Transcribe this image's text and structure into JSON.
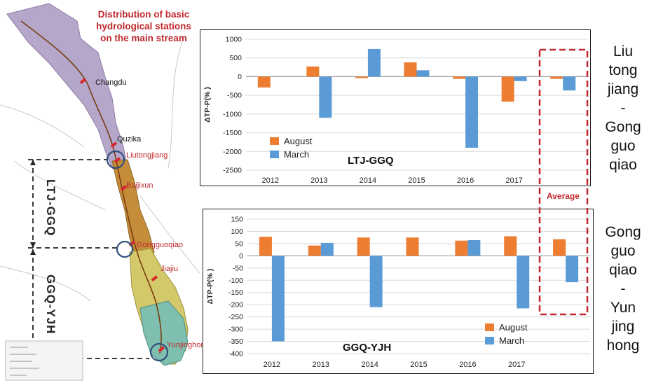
{
  "map": {
    "title_lines": [
      "Distribution of basic",
      "hydrological stations",
      "on the main stream"
    ],
    "stations": {
      "changdu": "Changdu",
      "quzika": "Quzika",
      "liutongjiang": "Liutongjiang",
      "baijixun": "Baijixun",
      "gongguoqiao": "Gongguoqiao",
      "jiajiu": "Jiajiu",
      "yunjinghong": "Yunjinghong"
    },
    "segments": {
      "top": "LTJ-GGQ",
      "bottom": "GGQ-YJH"
    }
  },
  "side_labels": {
    "top": [
      "Liu",
      "tong",
      "jiang",
      "-",
      "Gong",
      "guo",
      "qiao"
    ],
    "bottom": [
      "Gong",
      "guo",
      "qiao",
      "-",
      "Yun",
      "jing",
      "hong"
    ]
  },
  "average_label": "Average",
  "colors": {
    "august": "#ed7d31",
    "march": "#5b9bd5",
    "highlight": "#c0282f"
  },
  "chart_data": [
    {
      "type": "bar",
      "title": "LTJ-GGQ",
      "ylabel": "ΔTP-P(% )",
      "categories": [
        "2012",
        "2013",
        "2014",
        "2015",
        "2016",
        "2017",
        ""
      ],
      "series": [
        {
          "name": "August",
          "values": [
            -290,
            270,
            -40,
            380,
            -60,
            -670,
            -60
          ]
        },
        {
          "name": "March",
          "values": [
            0,
            -1100,
            740,
            170,
            -1900,
            -120,
            -370
          ]
        }
      ],
      "ylim": [
        -2500,
        1000
      ],
      "yticks": [
        "1000",
        "500",
        "0",
        "-500",
        "-1000",
        "-1500",
        "-2000",
        "-2500"
      ],
      "grid": true,
      "legend": "bottom-left"
    },
    {
      "type": "bar",
      "title": "GGQ-YJH",
      "ylabel": "ΔTP-P(% )",
      "categories": [
        "2012",
        "2013",
        "2014",
        "2015",
        "2016",
        "2017",
        ""
      ],
      "series": [
        {
          "name": "August",
          "values": [
            78,
            42,
            75,
            75,
            62,
            80,
            68
          ]
        },
        {
          "name": "March",
          "values": [
            -350,
            53,
            -210,
            0,
            64,
            -215,
            -108
          ]
        }
      ],
      "ylim": [
        -400,
        150
      ],
      "yticks": [
        "150",
        "100",
        "50",
        "0",
        "-50",
        "-100",
        "-150",
        "-200",
        "-250",
        "-300",
        "-350",
        "-400"
      ],
      "grid": true,
      "legend": "bottom-right"
    }
  ]
}
